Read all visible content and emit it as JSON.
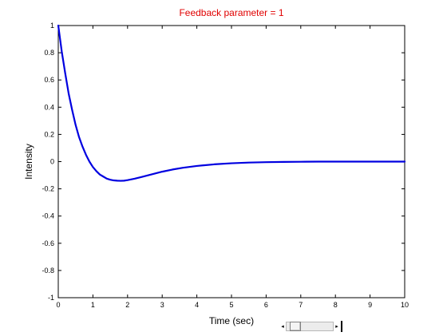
{
  "chart_data": {
    "type": "line",
    "title": "Feedback parameter = 1",
    "title_color": "#e00000",
    "xlabel": "Time (sec)",
    "ylabel": "Intensity",
    "xlim": [
      0,
      10
    ],
    "ylim": [
      -1,
      1
    ],
    "x_ticks": [
      0,
      1,
      2,
      3,
      4,
      5,
      6,
      7,
      8,
      9,
      10
    ],
    "x_tick_labels": [
      "0",
      "1",
      "2",
      "3",
      "4",
      "5",
      "6",
      "7",
      "8",
      "9",
      "10"
    ],
    "y_ticks": [
      1,
      0.8,
      0.6,
      0.4,
      0.2,
      0,
      -0.2,
      -0.4,
      -0.6,
      -0.8,
      -1
    ],
    "y_tick_labels": [
      "1",
      "0.8",
      "0.6",
      "0.4",
      "0.2",
      "0",
      "-0.2",
      "-0.4",
      "-0.6",
      "-0.8",
      "-1"
    ],
    "grid": false,
    "series": [
      {
        "color": "#0000e0",
        "x": [
          0,
          0.1,
          0.2,
          0.3,
          0.4,
          0.5,
          0.6,
          0.7,
          0.8,
          0.9,
          1.0,
          1.1,
          1.2,
          1.3,
          1.4,
          1.5,
          1.6,
          1.7,
          1.8,
          1.9,
          2.0,
          2.2,
          2.4,
          2.6,
          2.8,
          3.0,
          3.3,
          3.6,
          4.0,
          4.5,
          5.0,
          5.5,
          6.0,
          6.5,
          7.0,
          7.5,
          8.0,
          9.0,
          10.0
        ],
        "y": [
          1.0,
          0.81,
          0.65,
          0.5,
          0.38,
          0.27,
          0.18,
          0.11,
          0.05,
          0.0,
          -0.04,
          -0.07,
          -0.095,
          -0.11,
          -0.125,
          -0.133,
          -0.138,
          -0.14,
          -0.141,
          -0.14,
          -0.136,
          -0.126,
          -0.113,
          -0.1,
          -0.087,
          -0.074,
          -0.058,
          -0.045,
          -0.032,
          -0.02,
          -0.012,
          -0.007,
          -0.004,
          -0.002,
          -0.001,
          0.0,
          0.0,
          0.0,
          0.0
        ]
      }
    ]
  },
  "slider": {
    "left_arrow": "◂",
    "right_arrow": "▸",
    "value_fraction": 0.1
  }
}
